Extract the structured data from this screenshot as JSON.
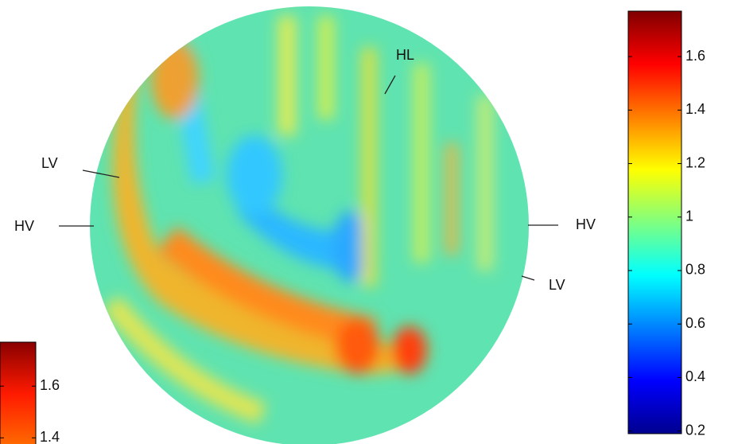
{
  "chart_data": [
    {
      "type": "sphere-map",
      "annotations": [
        "HL",
        "LV",
        "HV",
        "HV",
        "LV"
      ],
      "colormap": "jet",
      "ylim": [
        0.19,
        1.77
      ],
      "yticks": [
        0.2,
        0.4,
        0.6,
        0.8,
        1,
        1.2,
        1.4,
        1.6
      ]
    },
    {
      "type": "colorbar",
      "colormap": "hot",
      "ylim": [
        1.37,
        1.77
      ],
      "yticks": [
        1.4,
        1.6
      ]
    }
  ]
}
